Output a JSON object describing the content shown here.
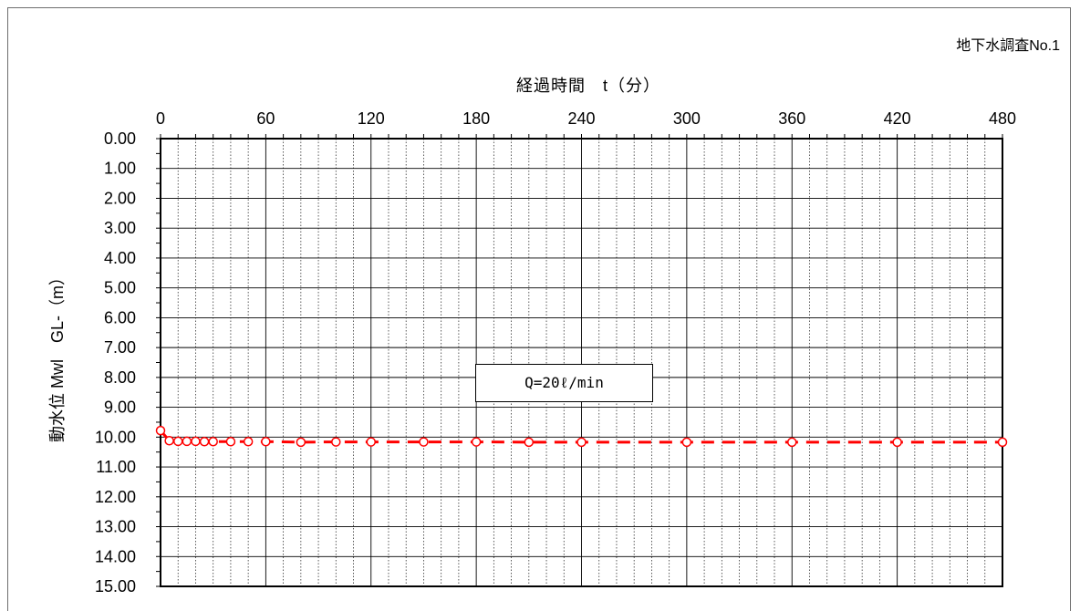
{
  "chart_data": {
    "type": "line",
    "title": "地下水調査No.1",
    "xlabel": "経過時間　t（分）",
    "ylabel": "動水位 Mwl　GL-（m）",
    "xlim": [
      0,
      480
    ],
    "ylim": [
      0,
      15
    ],
    "y_reversed": true,
    "x_axis_position": "top",
    "x_ticks": [
      "0",
      "60",
      "120",
      "180",
      "240",
      "300",
      "360",
      "420",
      "480"
    ],
    "y_ticks": [
      "0.00",
      "1.00",
      "2.00",
      "3.00",
      "4.00",
      "5.00",
      "6.00",
      "7.00",
      "8.00",
      "9.00",
      "10.00",
      "11.00",
      "12.00",
      "13.00",
      "14.00",
      "15.00"
    ],
    "grid": true,
    "annotation": "Q=20ℓ/min",
    "series": [
      {
        "color": "#ff0000",
        "marker": "open-circle",
        "line_style": "dashed",
        "x": [
          0,
          5,
          10,
          15,
          20,
          25,
          30,
          40,
          50,
          60,
          80,
          100,
          120,
          150,
          180,
          210,
          240,
          300,
          360,
          420,
          480
        ],
        "y": [
          9.78,
          10.12,
          10.14,
          10.14,
          10.14,
          10.15,
          10.15,
          10.15,
          10.15,
          10.15,
          10.17,
          10.16,
          10.16,
          10.16,
          10.16,
          10.17,
          10.17,
          10.17,
          10.17,
          10.17,
          10.17
        ]
      }
    ]
  }
}
